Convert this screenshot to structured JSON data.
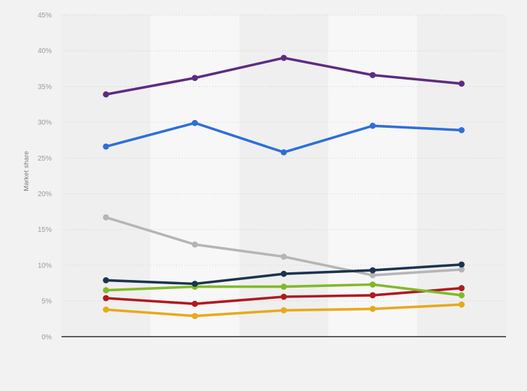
{
  "page": {
    "background": "#f2f2f2"
  },
  "axis": {
    "y_title": "Market share",
    "tick_color": "#999999",
    "title_color": "#757575"
  },
  "plot_style": {
    "band_dark": "#efefef",
    "band_light": "#f7f7f7",
    "grid_color": "#cccccc",
    "axis_line_color": "#2e2e2e",
    "page_bg": "#f2f2f2"
  },
  "chart_data": {
    "type": "line",
    "title": "",
    "xlabel": "",
    "ylabel": "Market share",
    "ylim": [
      0,
      45
    ],
    "ytick_step": 5,
    "ytick_labels": [
      "0%",
      "5%",
      "10%",
      "15%",
      "20%",
      "25%",
      "30%",
      "35%",
      "40%",
      "45%"
    ],
    "x_point_count": 5,
    "x_tick_labels_visible": false,
    "grid": "horizontal-dotted",
    "legend_position": "none",
    "marker": "circle",
    "series": [
      {
        "name": "purple-series",
        "color": "#5f2b82",
        "values": [
          33.9,
          36.2,
          39.0,
          36.6,
          35.4
        ]
      },
      {
        "name": "blue-series",
        "color": "#2e6fd8",
        "values": [
          26.6,
          29.9,
          25.8,
          29.5,
          28.9
        ]
      },
      {
        "name": "gray-series",
        "color": "#b5b5b5",
        "values": [
          16.7,
          12.9,
          11.2,
          8.6,
          9.4
        ]
      },
      {
        "name": "navy-series",
        "color": "#1a3450",
        "values": [
          7.9,
          7.4,
          8.8,
          9.3,
          10.1
        ]
      },
      {
        "name": "green-series",
        "color": "#80ba27",
        "values": [
          6.5,
          7.0,
          7.0,
          7.3,
          5.8
        ]
      },
      {
        "name": "red-series",
        "color": "#b01a20",
        "values": [
          5.4,
          4.6,
          5.6,
          5.8,
          6.8
        ]
      },
      {
        "name": "yellow-series",
        "color": "#e8a91c",
        "values": [
          3.8,
          2.9,
          3.7,
          3.9,
          4.5
        ]
      }
    ],
    "draw_order": [
      "gray-series",
      "yellow-series",
      "red-series",
      "green-series",
      "navy-series",
      "blue-series",
      "purple-series"
    ]
  }
}
